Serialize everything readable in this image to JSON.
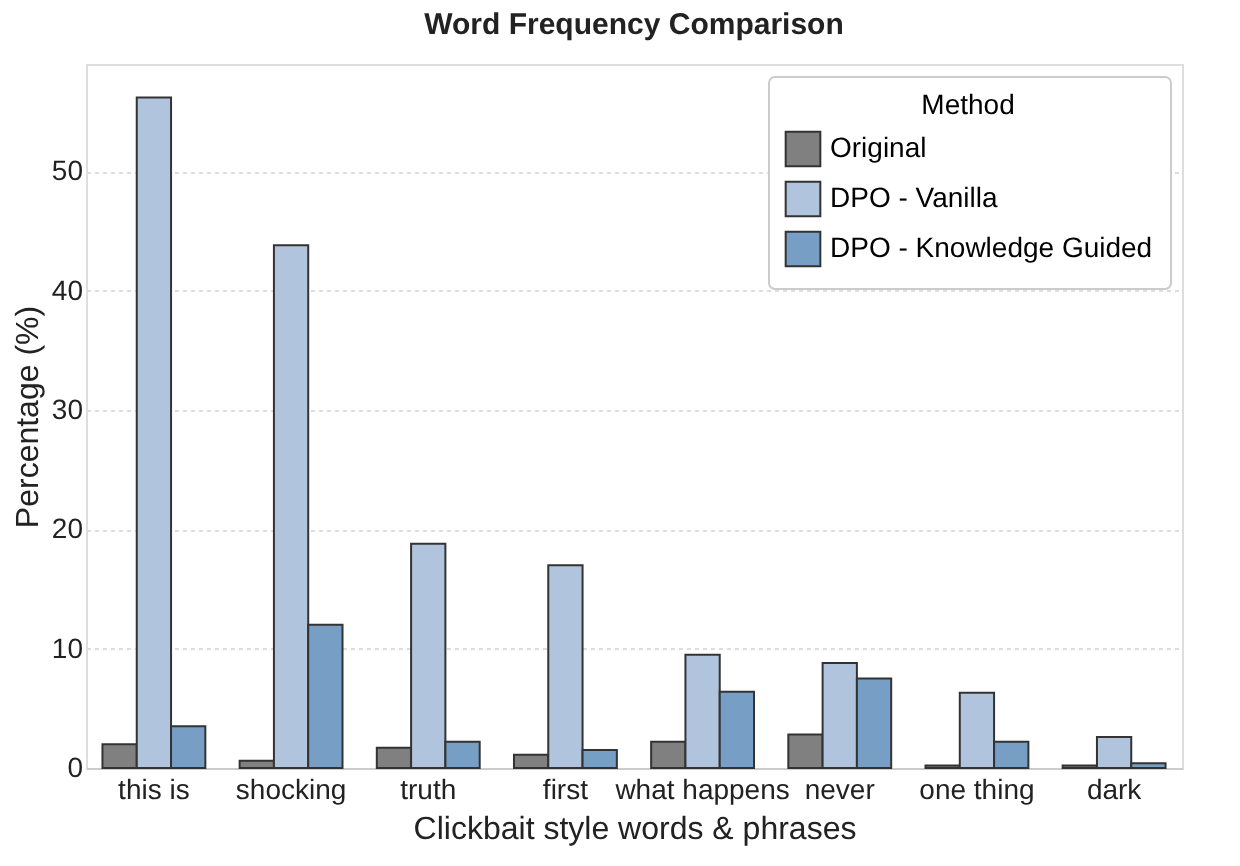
{
  "chart_data": {
    "type": "bar",
    "title": "Word Frequency Comparison",
    "xlabel": "Clickbait style words & phrases",
    "ylabel": "Percentage (%)",
    "legend_title": "Method",
    "categories": [
      "this is",
      "shocking",
      "truth",
      "first",
      "what happens",
      "never",
      "one thing",
      "dark"
    ],
    "series": [
      {
        "name": "Original",
        "color": "#808080",
        "values": [
          2.0,
          0.6,
          1.7,
          1.1,
          2.2,
          2.8,
          0.2,
          0.2
        ]
      },
      {
        "name": "DPO - Vanilla",
        "color": "#b0c4de",
        "values": [
          56.2,
          43.8,
          18.8,
          17.0,
          9.5,
          8.8,
          6.3,
          2.6
        ]
      },
      {
        "name": "DPO - Knowledge Guided",
        "color": "#779ec4",
        "values": [
          3.5,
          12.0,
          2.2,
          1.5,
          6.4,
          7.5,
          2.2,
          0.4
        ]
      }
    ],
    "ylim": [
      0,
      59
    ],
    "yticks": [
      0,
      10,
      20,
      30,
      40,
      50
    ],
    "grid": "y",
    "legend": "top right"
  }
}
